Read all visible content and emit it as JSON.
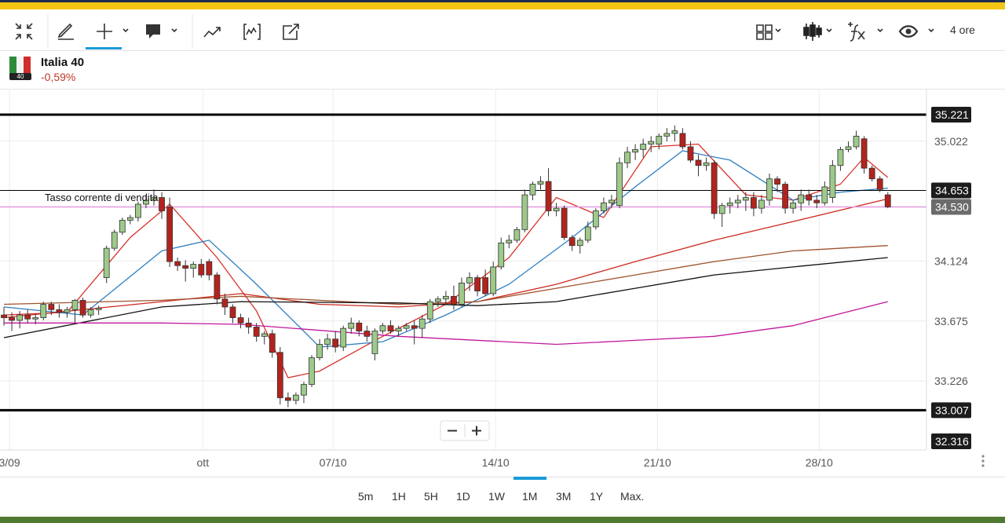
{
  "toolbar": {
    "timeframe": "4 ore"
  },
  "instrument": {
    "badge": "40",
    "name": "Italia 40",
    "change": "-0,59%"
  },
  "chart_data": {
    "type": "candlestick",
    "annotation": "Tasso corrente di vendita",
    "xlim": [
      -0.5,
      116.9
    ],
    "xticks": [
      {
        "value": 0.7,
        "label": "3/09"
      },
      {
        "value": 25.2,
        "label": "ott"
      },
      {
        "value": 41.7,
        "label": "07/10"
      },
      {
        "value": 62.3,
        "label": "14/10"
      },
      {
        "value": 82.8,
        "label": "21/10"
      },
      {
        "value": 103.3,
        "label": "28/10"
      }
    ],
    "ylim": [
      32.709,
      35.415
    ],
    "yticks": [
      33.226,
      33.675,
      34.124,
      35.022
    ],
    "grid": true,
    "up_color": "#9dc98a",
    "down_color": "#b3231d",
    "candles": [
      [
        33.72,
        33.78,
        33.64,
        33.7
      ],
      [
        33.7,
        33.74,
        33.6,
        33.68
      ],
      [
        33.68,
        33.75,
        33.62,
        33.72
      ],
      [
        33.72,
        33.76,
        33.66,
        33.69
      ],
      [
        33.69,
        33.73,
        33.65,
        33.7
      ],
      [
        33.7,
        33.82,
        33.68,
        33.8
      ],
      [
        33.8,
        33.82,
        33.72,
        33.76
      ],
      [
        33.76,
        33.8,
        33.7,
        33.74
      ],
      [
        33.74,
        33.78,
        33.7,
        33.76
      ],
      [
        33.76,
        33.84,
        33.66,
        33.83
      ],
      [
        33.83,
        33.85,
        33.7,
        33.72
      ],
      [
        33.72,
        33.78,
        33.7,
        33.76
      ],
      [
        33.76,
        33.79,
        33.72,
        33.77
      ],
      [
        34.0,
        34.24,
        33.96,
        34.22
      ],
      [
        34.22,
        34.36,
        34.2,
        34.34
      ],
      [
        34.34,
        34.45,
        34.32,
        34.43
      ],
      [
        34.43,
        34.47,
        34.4,
        34.45
      ],
      [
        34.45,
        34.57,
        34.42,
        34.55
      ],
      [
        34.55,
        34.62,
        34.52,
        34.58
      ],
      [
        34.58,
        34.66,
        34.54,
        34.6
      ],
      [
        34.6,
        34.64,
        34.44,
        34.5
      ],
      [
        34.53,
        34.6,
        34.08,
        34.12
      ],
      [
        34.12,
        34.15,
        34.05,
        34.09
      ],
      [
        34.09,
        34.13,
        33.97,
        34.07
      ],
      [
        34.07,
        34.12,
        34.0,
        34.1
      ],
      [
        34.1,
        34.14,
        34.0,
        34.02
      ],
      [
        34.12,
        34.14,
        33.98,
        34.02
      ],
      [
        34.02,
        34.04,
        33.8,
        33.84
      ],
      [
        33.84,
        33.88,
        33.72,
        33.78
      ],
      [
        33.78,
        33.8,
        33.66,
        33.7
      ],
      [
        33.7,
        33.73,
        33.62,
        33.66
      ],
      [
        33.66,
        33.7,
        33.58,
        33.63
      ],
      [
        33.63,
        33.66,
        33.52,
        33.56
      ],
      [
        33.56,
        33.6,
        33.5,
        33.58
      ],
      [
        33.58,
        33.61,
        33.4,
        33.44
      ],
      [
        33.44,
        33.48,
        33.05,
        33.1
      ],
      [
        33.1,
        33.14,
        33.03,
        33.08
      ],
      [
        33.08,
        33.14,
        33.05,
        33.12
      ],
      [
        33.12,
        33.22,
        33.06,
        33.2
      ],
      [
        33.2,
        33.42,
        33.18,
        33.4
      ],
      [
        33.4,
        33.54,
        33.38,
        33.5
      ],
      [
        33.5,
        33.58,
        33.46,
        33.54
      ],
      [
        33.54,
        33.6,
        33.44,
        33.48
      ],
      [
        33.48,
        33.64,
        33.45,
        33.62
      ],
      [
        33.62,
        33.7,
        33.58,
        33.66
      ],
      [
        33.66,
        33.68,
        33.56,
        33.6
      ],
      [
        33.6,
        33.64,
        33.52,
        33.56
      ],
      [
        33.43,
        33.62,
        33.38,
        33.6
      ],
      [
        33.6,
        33.66,
        33.58,
        33.64
      ],
      [
        33.64,
        33.68,
        33.58,
        33.6
      ],
      [
        33.6,
        33.64,
        33.56,
        33.62
      ],
      [
        33.62,
        33.66,
        33.6,
        33.64
      ],
      [
        33.64,
        33.68,
        33.5,
        33.62
      ],
      [
        33.62,
        33.72,
        33.55,
        33.69
      ],
      [
        33.69,
        33.84,
        33.66,
        33.82
      ],
      [
        33.82,
        33.86,
        33.78,
        33.84
      ],
      [
        33.84,
        33.9,
        33.8,
        33.86
      ],
      [
        33.86,
        33.94,
        33.76,
        33.8
      ],
      [
        33.8,
        34.0,
        33.78,
        33.96
      ],
      [
        33.96,
        34.04,
        33.9,
        34.0
      ],
      [
        34.0,
        34.02,
        33.86,
        33.9
      ],
      [
        34.0,
        34.06,
        33.86,
        33.88
      ],
      [
        33.88,
        34.12,
        33.86,
        34.08
      ],
      [
        34.08,
        34.3,
        34.06,
        34.26
      ],
      [
        34.26,
        34.32,
        34.22,
        34.28
      ],
      [
        34.28,
        34.38,
        34.26,
        34.36
      ],
      [
        34.36,
        34.66,
        34.34,
        34.62
      ],
      [
        34.62,
        34.72,
        34.58,
        34.7
      ],
      [
        34.7,
        34.76,
        34.66,
        34.72
      ],
      [
        34.72,
        34.82,
        34.46,
        34.5
      ],
      [
        34.5,
        34.56,
        34.46,
        34.52
      ],
      [
        34.52,
        34.54,
        34.28,
        34.3
      ],
      [
        34.3,
        34.32,
        34.2,
        34.24
      ],
      [
        34.24,
        34.3,
        34.18,
        34.28
      ],
      [
        34.28,
        34.42,
        34.26,
        34.38
      ],
      [
        34.38,
        34.52,
        34.36,
        34.5
      ],
      [
        34.5,
        34.6,
        34.48,
        34.56
      ],
      [
        34.56,
        34.62,
        34.52,
        34.58
      ],
      [
        34.54,
        34.9,
        34.52,
        34.86
      ],
      [
        34.86,
        34.98,
        34.82,
        34.94
      ],
      [
        34.94,
        35.0,
        34.88,
        34.96
      ],
      [
        34.96,
        35.04,
        34.9,
        35.0
      ],
      [
        35.0,
        35.06,
        34.94,
        35.02
      ],
      [
        35.0,
        35.08,
        34.96,
        35.06
      ],
      [
        35.06,
        35.12,
        35.02,
        35.08
      ],
      [
        35.08,
        35.14,
        35.02,
        35.1
      ],
      [
        35.08,
        35.12,
        34.96,
        34.98
      ],
      [
        34.98,
        35.02,
        34.86,
        34.88
      ],
      [
        34.88,
        34.92,
        34.76,
        34.84
      ],
      [
        34.84,
        34.9,
        34.8,
        34.86
      ],
      [
        34.86,
        34.88,
        34.44,
        34.48
      ],
      [
        34.48,
        34.56,
        34.38,
        34.54
      ],
      [
        34.54,
        34.6,
        34.48,
        34.56
      ],
      [
        34.56,
        34.62,
        34.52,
        34.58
      ],
      [
        34.58,
        34.64,
        34.5,
        34.6
      ],
      [
        34.6,
        34.64,
        34.46,
        34.52
      ],
      [
        34.52,
        34.62,
        34.48,
        34.58
      ],
      [
        34.58,
        34.78,
        34.54,
        34.74
      ],
      [
        34.74,
        34.76,
        34.64,
        34.7
      ],
      [
        34.7,
        34.72,
        34.48,
        34.52
      ],
      [
        34.52,
        34.58,
        34.48,
        34.56
      ],
      [
        34.56,
        34.66,
        34.5,
        34.62
      ],
      [
        34.62,
        34.66,
        34.54,
        34.58
      ],
      [
        34.58,
        34.62,
        34.52,
        34.56
      ],
      [
        34.56,
        34.72,
        34.54,
        34.68
      ],
      [
        34.6,
        34.88,
        34.56,
        34.84
      ],
      [
        34.84,
        34.98,
        34.8,
        34.96
      ],
      [
        34.96,
        35.02,
        34.94,
        34.98
      ],
      [
        34.98,
        35.1,
        34.96,
        35.06
      ],
      [
        35.04,
        35.06,
        34.78,
        34.82
      ],
      [
        34.82,
        34.84,
        34.72,
        34.74
      ],
      [
        34.74,
        34.76,
        34.64,
        34.66
      ],
      [
        34.62,
        34.64,
        34.52,
        34.53
      ]
    ],
    "series": [
      {
        "color": "#d9322b",
        "x": [
          0,
          8,
          16,
          21,
          27,
          32,
          36,
          40,
          48,
          56,
          64,
          70,
          76,
          82,
          88,
          94,
          100,
          106,
          109,
          112
        ],
        "values": [
          33.72,
          33.74,
          34.3,
          34.55,
          34.15,
          33.75,
          33.25,
          33.3,
          33.56,
          33.8,
          34.15,
          34.6,
          34.45,
          34.98,
          35.0,
          34.62,
          34.58,
          34.7,
          34.9,
          34.75
        ]
      },
      {
        "color": "#2f7fc0",
        "x": [
          0,
          10,
          20,
          26,
          32,
          40,
          48,
          56,
          64,
          72,
          80,
          86,
          92,
          100,
          106,
          112
        ],
        "values": [
          33.78,
          33.72,
          34.2,
          34.28,
          33.95,
          33.48,
          33.52,
          33.72,
          33.95,
          34.3,
          34.68,
          34.95,
          34.88,
          34.58,
          34.64,
          34.67
        ]
      },
      {
        "color": "#cc2a1e",
        "x": [
          0,
          20,
          30,
          40,
          50,
          60,
          70,
          80,
          90,
          100,
          112
        ],
        "values": [
          33.7,
          33.82,
          33.88,
          33.8,
          33.78,
          33.82,
          33.95,
          34.12,
          34.28,
          34.42,
          34.59
        ]
      },
      {
        "color": "#a0522d",
        "x": [
          0,
          20,
          30,
          50,
          60,
          70,
          80,
          90,
          100,
          112
        ],
        "values": [
          33.8,
          33.83,
          33.86,
          33.8,
          33.82,
          33.92,
          34.02,
          34.12,
          34.2,
          34.24
        ]
      },
      {
        "color": "#111111",
        "x": [
          0,
          20,
          30,
          50,
          60,
          70,
          80,
          90,
          100,
          112
        ],
        "values": [
          33.55,
          33.78,
          33.82,
          33.81,
          33.79,
          33.82,
          33.92,
          34.02,
          34.08,
          34.15
        ]
      },
      {
        "color": "#c2189b",
        "x": [
          0,
          20,
          30,
          50,
          70,
          80,
          90,
          100,
          112
        ],
        "values": [
          33.66,
          33.66,
          33.65,
          33.56,
          33.5,
          33.53,
          33.56,
          33.64,
          33.82
        ]
      }
    ],
    "hlines": [
      {
        "value": 35.221,
        "color": "#000000",
        "width": 3,
        "box": "#1c1c1c"
      },
      {
        "value": 34.653,
        "color": "#000000",
        "width": 1,
        "box": "#1c1c1c"
      },
      {
        "value": 34.53,
        "label": "34.530",
        "color": "#e59be0",
        "width": 1.5,
        "box": "#6b6b6b"
      },
      {
        "value": 33.007,
        "color": "#000000",
        "width": 3,
        "box": "#1c1c1c"
      }
    ],
    "low_marker": 32.316
  },
  "timeframes": {
    "options": [
      "5m",
      "1H",
      "5H",
      "1D",
      "1W",
      "1M",
      "3M",
      "1Y",
      "Max."
    ],
    "active": 5
  }
}
